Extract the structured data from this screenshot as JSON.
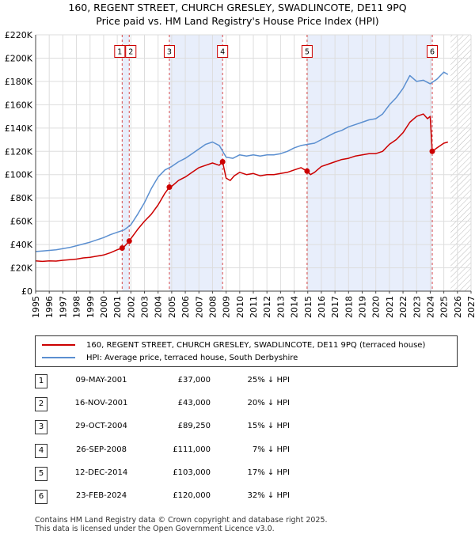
{
  "chart_data": {
    "type": "line",
    "title": "160, REGENT STREET, CHURCH GRESLEY, SWADLINCOTE, DE11 9PQ",
    "subtitle": "Price paid vs. HM Land Registry's House Price Index (HPI)",
    "xlim": [
      1995,
      2027
    ],
    "ylim": [
      0,
      220000
    ],
    "x_ticks": [
      "1995",
      "1996",
      "1997",
      "1998",
      "1999",
      "2000",
      "2001",
      "2002",
      "2003",
      "2004",
      "2005",
      "2006",
      "2007",
      "2008",
      "2009",
      "2010",
      "2011",
      "2012",
      "2013",
      "2014",
      "2015",
      "2016",
      "2017",
      "2018",
      "2019",
      "2020",
      "2021",
      "2022",
      "2023",
      "2024",
      "2025",
      "2026",
      "2027"
    ],
    "y_ticks": [
      {
        "value": 0,
        "label": "£0"
      },
      {
        "value": 20000,
        "label": "£20K"
      },
      {
        "value": 40000,
        "label": "£40K"
      },
      {
        "value": 60000,
        "label": "£60K"
      },
      {
        "value": 80000,
        "label": "£80K"
      },
      {
        "value": 100000,
        "label": "£100K"
      },
      {
        "value": 120000,
        "label": "£120K"
      },
      {
        "value": 140000,
        "label": "£140K"
      },
      {
        "value": 160000,
        "label": "£160K"
      },
      {
        "value": 180000,
        "label": "£180K"
      },
      {
        "value": 200000,
        "label": "£200K"
      },
      {
        "value": 220000,
        "label": "£220K"
      }
    ],
    "future_start": 2025.5,
    "series": [
      {
        "name": "160, REGENT STREET, CHURCH GRESLEY, SWADLINCOTE, DE11 9PQ (terraced house)",
        "color": "#cc0000",
        "x": [
          1995.0,
          1995.5,
          1996.0,
          1996.5,
          1997.0,
          1997.5,
          1998.0,
          1998.5,
          1999.0,
          1999.5,
          2000.0,
          2000.5,
          2001.0,
          2001.36,
          2001.5,
          2001.88,
          2002.0,
          2002.5,
          2003.0,
          2003.5,
          2004.0,
          2004.5,
          2004.83,
          2005.0,
          2005.5,
          2006.0,
          2006.5,
          2007.0,
          2007.5,
          2008.0,
          2008.5,
          2008.74,
          2009.0,
          2009.3,
          2009.6,
          2010.0,
          2010.5,
          2011.0,
          2011.5,
          2012.0,
          2012.5,
          2013.0,
          2013.5,
          2014.0,
          2014.5,
          2014.95,
          2015.2,
          2015.5,
          2016.0,
          2016.5,
          2017.0,
          2017.5,
          2018.0,
          2018.5,
          2019.0,
          2019.5,
          2020.0,
          2020.5,
          2021.0,
          2021.5,
          2022.0,
          2022.5,
          2023.0,
          2023.5,
          2023.8,
          2024.0,
          2024.15,
          2024.5,
          2025.0,
          2025.3
        ],
        "values": [
          26000,
          25500,
          26000,
          25800,
          26500,
          27000,
          27500,
          28500,
          29000,
          30000,
          31000,
          33000,
          35500,
          37000,
          38000,
          43000,
          45000,
          53000,
          60000,
          66000,
          74000,
          84000,
          89250,
          90000,
          95000,
          98000,
          102000,
          106000,
          108000,
          110000,
          108000,
          111000,
          97000,
          95000,
          99000,
          102000,
          100000,
          101000,
          99000,
          100000,
          100000,
          101000,
          102000,
          104000,
          106000,
          103000,
          100000,
          102000,
          107000,
          109000,
          111000,
          113000,
          114000,
          116000,
          117000,
          118000,
          118000,
          120000,
          126000,
          130000,
          136000,
          145000,
          150000,
          152000,
          148000,
          150000,
          120000,
          123000,
          127000,
          128000
        ]
      },
      {
        "name": "HPI: Average price, terraced house, South Derbyshire",
        "color": "#5b8fd0",
        "x": [
          1995.0,
          1995.5,
          1996.0,
          1996.5,
          1997.0,
          1997.5,
          1998.0,
          1998.5,
          1999.0,
          1999.5,
          2000.0,
          2000.5,
          2001.0,
          2001.5,
          2002.0,
          2002.5,
          2003.0,
          2003.5,
          2004.0,
          2004.5,
          2005.0,
          2005.5,
          2006.0,
          2006.5,
          2007.0,
          2007.5,
          2008.0,
          2008.5,
          2009.0,
          2009.5,
          2010.0,
          2010.5,
          2011.0,
          2011.5,
          2012.0,
          2012.5,
          2013.0,
          2013.5,
          2014.0,
          2014.5,
          2015.0,
          2015.5,
          2016.0,
          2016.5,
          2017.0,
          2017.5,
          2018.0,
          2018.5,
          2019.0,
          2019.5,
          2020.0,
          2020.5,
          2021.0,
          2021.5,
          2022.0,
          2022.5,
          2023.0,
          2023.5,
          2024.0,
          2024.5,
          2025.0,
          2025.3
        ],
        "values": [
          34000,
          34500,
          35000,
          35500,
          36500,
          37500,
          39000,
          40500,
          42000,
          44000,
          46000,
          48500,
          50500,
          52500,
          57000,
          66000,
          76000,
          88000,
          98000,
          104000,
          107000,
          111000,
          114000,
          118000,
          122000,
          126000,
          128000,
          125000,
          115000,
          114000,
          117000,
          116000,
          117000,
          116000,
          117000,
          117000,
          118000,
          120000,
          123000,
          125000,
          126000,
          127000,
          130000,
          133000,
          136000,
          138000,
          141000,
          143000,
          145000,
          147000,
          148000,
          152000,
          160000,
          166000,
          174000,
          185000,
          180000,
          181000,
          178000,
          182000,
          188000,
          186000
        ]
      }
    ],
    "transactions": [
      {
        "label": "1",
        "x": 2001.36,
        "value": 37000
      },
      {
        "label": "2",
        "x": 2001.88,
        "value": 43000
      },
      {
        "label": "3",
        "x": 2004.83,
        "value": 89250
      },
      {
        "label": "4",
        "x": 2008.74,
        "value": 111000
      },
      {
        "label": "5",
        "x": 2014.95,
        "value": 103000
      },
      {
        "label": "6",
        "x": 2024.15,
        "value": 120000
      }
    ]
  },
  "legend": {
    "items": [
      {
        "label": "160, REGENT STREET, CHURCH GRESLEY, SWADLINCOTE, DE11 9PQ (terraced house)",
        "color": "#cc0000"
      },
      {
        "label": "HPI: Average price, terraced house, South Derbyshire",
        "color": "#5b8fd0"
      }
    ]
  },
  "table": {
    "rows": [
      {
        "num": "1",
        "date": "09-MAY-2001",
        "price": "£37,000",
        "hpi": "25% ↓ HPI"
      },
      {
        "num": "2",
        "date": "16-NOV-2001",
        "price": "£43,000",
        "hpi": "20% ↓ HPI"
      },
      {
        "num": "3",
        "date": "29-OCT-2004",
        "price": "£89,250",
        "hpi": "15% ↓ HPI"
      },
      {
        "num": "4",
        "date": "26-SEP-2008",
        "price": "£111,000",
        "hpi": "7% ↓ HPI"
      },
      {
        "num": "5",
        "date": "12-DEC-2014",
        "price": "£103,000",
        "hpi": "17% ↓ HPI"
      },
      {
        "num": "6",
        "date": "23-FEB-2024",
        "price": "£120,000",
        "hpi": "32% ↓ HPI"
      }
    ]
  },
  "footer": {
    "line1": "Contains HM Land Registry data © Crown copyright and database right 2025.",
    "line2": "This data is licensed under the Open Government Licence v3.0."
  },
  "colors": {
    "shade": "#e8eefb",
    "grid": "#dddddd",
    "marker": "#cc0000",
    "vline": "#cc0000"
  }
}
